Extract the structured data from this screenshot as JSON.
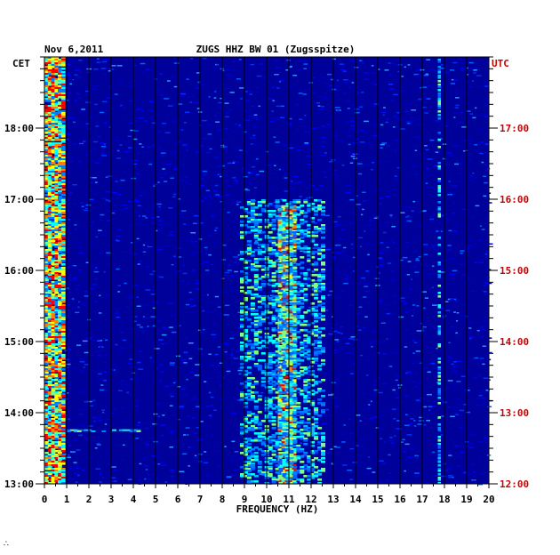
{
  "chart_data": {
    "type": "heatmap",
    "title_left": "Nov 6,2011",
    "title_center": "ZUGS HHZ BW 01 (Zugsspitze)",
    "xlabel": "FREQUENCY (HZ)",
    "x_ticks": [
      "0",
      "1",
      "2",
      "3",
      "4",
      "5",
      "6",
      "7",
      "8",
      "9",
      "10",
      "11",
      "12",
      "13",
      "14",
      "15",
      "16",
      "17",
      "18",
      "19",
      "20"
    ],
    "xlim": [
      0,
      20
    ],
    "left_axis": {
      "label": "CET",
      "ticks": [
        "13:00",
        "14:00",
        "15:00",
        "16:00",
        "17:00",
        "18:00"
      ],
      "color": "#000000"
    },
    "right_axis": {
      "label": "UTC",
      "ticks": [
        "12:00",
        "13:00",
        "14:00",
        "15:00",
        "16:00",
        "17:00"
      ],
      "color": "#cc0000"
    },
    "time_range_cet": [
      "13:00",
      "19:00"
    ],
    "colorscale": [
      "#00008f",
      "#0000ff",
      "#0080ff",
      "#00ffff",
      "#80ff80",
      "#ffff00",
      "#ff8000",
      "#ff0000"
    ],
    "background_color": "#00009a",
    "grid": true,
    "features": [
      {
        "freq_hz": [
          0.0,
          0.9
        ],
        "time_cet": [
          "13:00",
          "19:00"
        ],
        "level": "high"
      },
      {
        "freq_hz": [
          10.5,
          11.3
        ],
        "time_cet": [
          "13:00",
          "16:55"
        ],
        "level": "high"
      },
      {
        "freq_hz": [
          8.8,
          12.6
        ],
        "time_cet": [
          "13:00",
          "17:00"
        ],
        "level": "medium"
      },
      {
        "freq_hz": [
          17.7,
          17.8
        ],
        "time_cet": [
          "13:00",
          "19:00"
        ],
        "level": "medium"
      },
      {
        "freq_hz": [
          1.0,
          4.3
        ],
        "time_cet": [
          "13:44",
          "13:46"
        ],
        "level": "medium"
      }
    ]
  },
  "footer_mark": "∴"
}
